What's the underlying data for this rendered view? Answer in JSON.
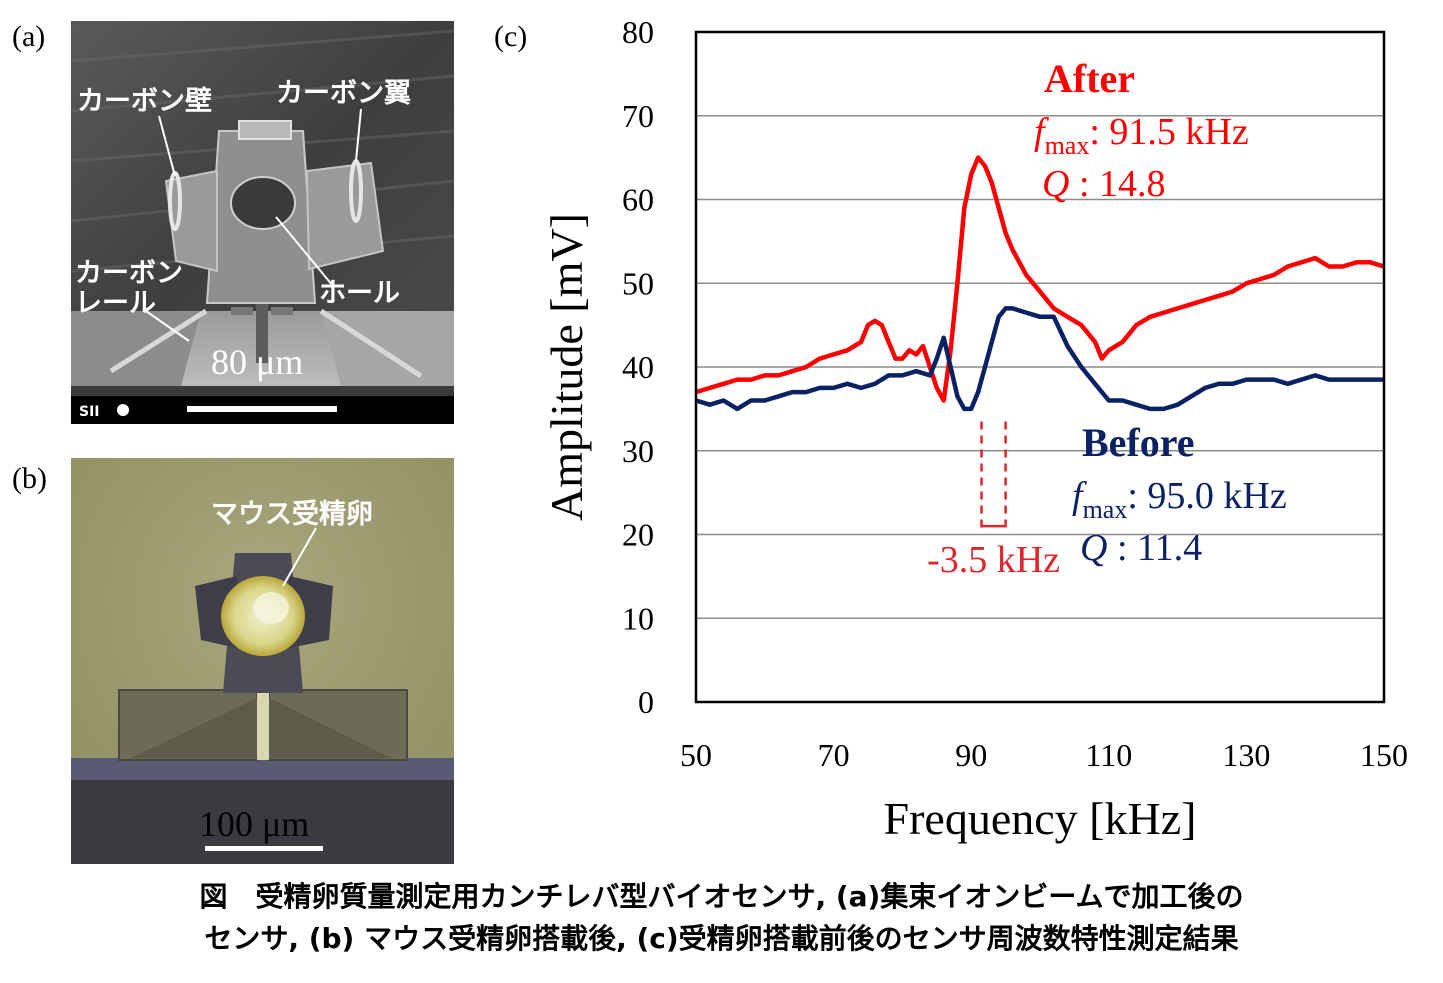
{
  "figure": {
    "panel_a": "(a)",
    "panel_b": "(b)",
    "panel_c": "(c)"
  },
  "sem_image": {
    "labels": {
      "carbon_wall": "カーボン壁",
      "carbon_wing": "カーボン翼",
      "carbon_rail": "カーボン\nレール",
      "hole": "ホール"
    },
    "scale": "80 μm",
    "info_bar_logo": "SII"
  },
  "optical_image": {
    "label": "マウス受精卵",
    "scale": "100 μm"
  },
  "chart_data": {
    "type": "line",
    "xlabel": "Frequency [kHz]",
    "ylabel": "Amplitude [mV]",
    "xlim": [
      50,
      150
    ],
    "ylim": [
      0,
      80
    ],
    "xticks": [
      50,
      70,
      90,
      110,
      130,
      150
    ],
    "yticks": [
      0,
      10,
      20,
      30,
      40,
      50,
      60,
      70,
      80
    ],
    "grid": "horizontal",
    "series": [
      {
        "name": "After",
        "color": "#ff0000",
        "x": [
          50,
          52,
          54,
          56,
          58,
          60,
          62,
          64,
          66,
          68,
          70,
          72,
          74,
          75,
          76,
          77,
          78,
          79,
          80,
          81,
          82,
          83,
          84,
          85,
          86,
          87,
          88,
          89,
          90,
          91,
          92,
          93,
          94,
          95,
          96,
          98,
          100,
          102,
          104,
          106,
          108,
          109,
          110,
          112,
          114,
          116,
          118,
          120,
          122,
          124,
          126,
          128,
          130,
          132,
          134,
          136,
          138,
          140,
          142,
          144,
          146,
          148,
          150
        ],
        "y": [
          37,
          37.5,
          38,
          38.5,
          38.5,
          39,
          39,
          39.5,
          40,
          41,
          41.5,
          42,
          43,
          45,
          45.5,
          45,
          43,
          41,
          41,
          42,
          41.5,
          42.5,
          40,
          37.5,
          36,
          42,
          50,
          59,
          63,
          65,
          64,
          62,
          59,
          56,
          54,
          51,
          49,
          47,
          46,
          45,
          43,
          41,
          42,
          43,
          45,
          46,
          46.5,
          47,
          47.5,
          48,
          48.5,
          49,
          50,
          50.5,
          51,
          52,
          52.5,
          53,
          52,
          52,
          52.5,
          52.5,
          52
        ]
      },
      {
        "name": "Before",
        "color": "#0a2264",
        "x": [
          50,
          52,
          54,
          56,
          58,
          60,
          62,
          64,
          66,
          68,
          70,
          72,
          74,
          76,
          78,
          80,
          82,
          84,
          85,
          86,
          87,
          88,
          89,
          90,
          91,
          92,
          93,
          94,
          95,
          96,
          98,
          100,
          102,
          104,
          106,
          108,
          110,
          112,
          114,
          116,
          118,
          120,
          122,
          124,
          126,
          128,
          130,
          132,
          134,
          136,
          138,
          140,
          142,
          144,
          146,
          148,
          150
        ],
        "y": [
          36,
          35.5,
          36,
          35,
          36,
          36,
          36.5,
          37,
          37,
          37.5,
          37.5,
          38,
          37.5,
          38,
          39,
          39,
          39.5,
          39,
          41,
          43.5,
          40,
          36.5,
          35,
          35,
          37,
          40,
          43,
          46,
          47,
          47,
          46.5,
          46,
          46,
          42.5,
          40,
          38,
          36,
          36,
          35.5,
          35,
          35,
          35.5,
          36.5,
          37.5,
          38,
          38,
          38.5,
          38.5,
          38.5,
          38,
          38.5,
          39,
          38.5,
          38.5,
          38.5,
          38.5,
          38.5
        ]
      }
    ],
    "annotations": {
      "after": {
        "title": "After",
        "fmax_symbol": "f",
        "fmax_sub": "max",
        "fmax_value": ": 91.5 kHz",
        "q_symbol": "Q",
        "q_value": " : 14.8",
        "color": "#ff0000"
      },
      "before": {
        "title": "Before",
        "fmax_symbol": "f",
        "fmax_sub": "max",
        "fmax_value": ": 95.0 kHz",
        "q_symbol": "Q",
        "q_value": " : 11.4",
        "color": "#0a2264"
      },
      "shift": {
        "text": "-3.5 kHz",
        "from": 91.5,
        "to": 95.0,
        "color": "#e0262b"
      }
    }
  },
  "caption": {
    "line1": "図　受精卵質量測定用カンチレバ型バイオセンサ, (a)集束イオンビームで加工後の",
    "line2": "センサ, (b) マウス受精卵搭載後, (c)受精卵搭載前後のセンサ周波数特性測定結果"
  }
}
